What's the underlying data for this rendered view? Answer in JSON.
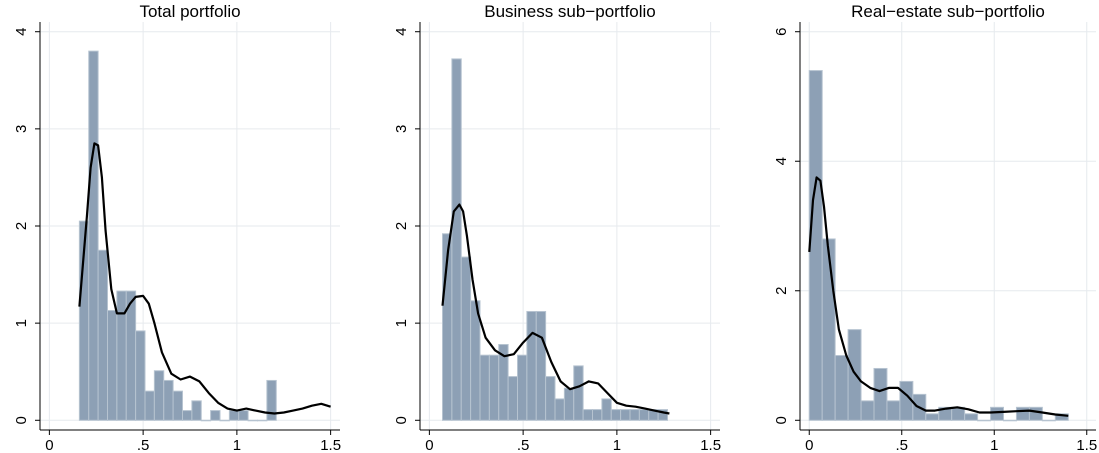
{
  "chart_data": [
    {
      "type": "bar",
      "title": "Total portfolio",
      "xlabel": "",
      "ylabel": "",
      "xlim": [
        -0.05,
        1.55
      ],
      "ylim": [
        -0.1,
        4.1
      ],
      "x_ticks": [
        0,
        0.5,
        1,
        1.5
      ],
      "x_tick_labels": [
        "0",
        ".5",
        "1",
        "1.5"
      ],
      "y_ticks": [
        0,
        1,
        2,
        3,
        4
      ],
      "y_tick_labels": [
        "0",
        "1",
        "2",
        "3",
        "4"
      ],
      "grid": true,
      "legend": "none",
      "bin_width": 0.05,
      "bins": [
        {
          "x0": 0.16,
          "height": 2.05
        },
        {
          "x0": 0.21,
          "height": 3.8
        },
        {
          "x0": 0.26,
          "height": 1.75
        },
        {
          "x0": 0.31,
          "height": 1.13
        },
        {
          "x0": 0.36,
          "height": 1.33
        },
        {
          "x0": 0.41,
          "height": 1.33
        },
        {
          "x0": 0.46,
          "height": 0.92
        },
        {
          "x0": 0.51,
          "height": 0.3
        },
        {
          "x0": 0.56,
          "height": 0.51
        },
        {
          "x0": 0.61,
          "height": 0.41
        },
        {
          "x0": 0.66,
          "height": 0.3
        },
        {
          "x0": 0.71,
          "height": 0.1
        },
        {
          "x0": 0.76,
          "height": 0.2
        },
        {
          "x0": 0.81,
          "height": 0.0
        },
        {
          "x0": 0.86,
          "height": 0.1
        },
        {
          "x0": 0.91,
          "height": 0.0
        },
        {
          "x0": 0.96,
          "height": 0.1
        },
        {
          "x0": 1.01,
          "height": 0.1
        },
        {
          "x0": 1.06,
          "height": 0.0
        },
        {
          "x0": 1.11,
          "height": 0.0
        },
        {
          "x0": 1.16,
          "height": 0.41
        }
      ],
      "density_line": {
        "x": [
          0.16,
          0.2,
          0.22,
          0.24,
          0.26,
          0.28,
          0.3,
          0.33,
          0.36,
          0.4,
          0.43,
          0.46,
          0.5,
          0.53,
          0.56,
          0.6,
          0.65,
          0.7,
          0.75,
          0.8,
          0.85,
          0.9,
          0.95,
          1.0,
          1.05,
          1.1,
          1.15,
          1.2,
          1.25,
          1.3,
          1.35,
          1.4,
          1.45,
          1.5
        ],
        "y": [
          1.17,
          2.1,
          2.6,
          2.85,
          2.83,
          2.5,
          1.95,
          1.35,
          1.1,
          1.1,
          1.2,
          1.27,
          1.28,
          1.2,
          1.0,
          0.7,
          0.48,
          0.42,
          0.45,
          0.4,
          0.28,
          0.18,
          0.12,
          0.1,
          0.12,
          0.1,
          0.08,
          0.07,
          0.08,
          0.1,
          0.12,
          0.15,
          0.17,
          0.14
        ]
      }
    },
    {
      "type": "bar",
      "title": "Business sub−portfolio",
      "xlabel": "",
      "ylabel": "",
      "xlim": [
        -0.05,
        1.55
      ],
      "ylim": [
        -0.1,
        4.1
      ],
      "x_ticks": [
        0,
        0.5,
        1,
        1.5
      ],
      "x_tick_labels": [
        "0",
        ".5",
        "1",
        "1.5"
      ],
      "y_ticks": [
        0,
        1,
        2,
        3,
        4
      ],
      "y_tick_labels": [
        "0",
        "1",
        "2",
        "3",
        "4"
      ],
      "grid": true,
      "legend": "none",
      "bin_width": 0.05,
      "bins": [
        {
          "x0": 0.07,
          "height": 1.92
        },
        {
          "x0": 0.12,
          "height": 3.72
        },
        {
          "x0": 0.17,
          "height": 1.68
        },
        {
          "x0": 0.22,
          "height": 1.23
        },
        {
          "x0": 0.27,
          "height": 0.67
        },
        {
          "x0": 0.32,
          "height": 0.67
        },
        {
          "x0": 0.37,
          "height": 0.78
        },
        {
          "x0": 0.42,
          "height": 0.45
        },
        {
          "x0": 0.47,
          "height": 0.67
        },
        {
          "x0": 0.52,
          "height": 1.12
        },
        {
          "x0": 0.57,
          "height": 1.12
        },
        {
          "x0": 0.62,
          "height": 0.45
        },
        {
          "x0": 0.67,
          "height": 0.22
        },
        {
          "x0": 0.72,
          "height": 0.33
        },
        {
          "x0": 0.77,
          "height": 0.56
        },
        {
          "x0": 0.82,
          "height": 0.11
        },
        {
          "x0": 0.87,
          "height": 0.11
        },
        {
          "x0": 0.92,
          "height": 0.22
        },
        {
          "x0": 0.97,
          "height": 0.11
        },
        {
          "x0": 1.02,
          "height": 0.11
        },
        {
          "x0": 1.07,
          "height": 0.11
        },
        {
          "x0": 1.12,
          "height": 0.11
        },
        {
          "x0": 1.17,
          "height": 0.11
        },
        {
          "x0": 1.22,
          "height": 0.11
        }
      ],
      "density_line": {
        "x": [
          0.07,
          0.1,
          0.13,
          0.16,
          0.18,
          0.2,
          0.23,
          0.26,
          0.3,
          0.35,
          0.4,
          0.45,
          0.5,
          0.55,
          0.6,
          0.65,
          0.7,
          0.75,
          0.8,
          0.85,
          0.9,
          0.95,
          1.0,
          1.05,
          1.1,
          1.15,
          1.2,
          1.25,
          1.28
        ],
        "y": [
          1.18,
          1.75,
          2.15,
          2.22,
          2.15,
          1.9,
          1.45,
          1.1,
          0.85,
          0.72,
          0.66,
          0.68,
          0.8,
          0.9,
          0.85,
          0.6,
          0.4,
          0.32,
          0.35,
          0.4,
          0.38,
          0.28,
          0.18,
          0.15,
          0.14,
          0.12,
          0.1,
          0.08,
          0.07
        ]
      }
    },
    {
      "type": "bar",
      "title": "Real−estate sub−portfolio",
      "xlabel": "",
      "ylabel": "",
      "xlim": [
        -0.05,
        1.55
      ],
      "ylim": [
        -0.15,
        6.15
      ],
      "x_ticks": [
        0,
        0.5,
        1,
        1.5
      ],
      "x_tick_labels": [
        "0",
        ".5",
        "1",
        "1.5"
      ],
      "y_ticks": [
        0,
        2,
        4,
        6
      ],
      "y_tick_labels": [
        "0",
        "2",
        "4",
        "6"
      ],
      "grid": true,
      "legend": "none",
      "bin_width": 0.07,
      "bins": [
        {
          "x0": 0.0,
          "height": 5.4
        },
        {
          "x0": 0.07,
          "height": 2.8
        },
        {
          "x0": 0.14,
          "height": 1.0
        },
        {
          "x0": 0.21,
          "height": 1.4
        },
        {
          "x0": 0.28,
          "height": 0.3
        },
        {
          "x0": 0.35,
          "height": 0.8
        },
        {
          "x0": 0.42,
          "height": 0.3
        },
        {
          "x0": 0.49,
          "height": 0.6
        },
        {
          "x0": 0.56,
          "height": 0.4
        },
        {
          "x0": 0.63,
          "height": 0.1
        },
        {
          "x0": 0.7,
          "height": 0.2
        },
        {
          "x0": 0.77,
          "height": 0.2
        },
        {
          "x0": 0.84,
          "height": 0.1
        },
        {
          "x0": 0.91,
          "height": 0.0
        },
        {
          "x0": 0.98,
          "height": 0.2
        },
        {
          "x0": 1.05,
          "height": 0.0
        },
        {
          "x0": 1.12,
          "height": 0.2
        },
        {
          "x0": 1.19,
          "height": 0.2
        },
        {
          "x0": 1.26,
          "height": 0.0
        },
        {
          "x0": 1.33,
          "height": 0.1
        }
      ],
      "density_line": {
        "x": [
          0.0,
          0.02,
          0.04,
          0.06,
          0.08,
          0.1,
          0.13,
          0.16,
          0.2,
          0.24,
          0.28,
          0.33,
          0.38,
          0.43,
          0.48,
          0.53,
          0.58,
          0.63,
          0.68,
          0.74,
          0.8,
          0.86,
          0.92,
          0.98,
          1.05,
          1.12,
          1.19,
          1.26,
          1.33,
          1.4
        ],
        "y": [
          2.6,
          3.4,
          3.75,
          3.7,
          3.3,
          2.7,
          2.0,
          1.4,
          1.0,
          0.75,
          0.6,
          0.5,
          0.45,
          0.5,
          0.5,
          0.38,
          0.22,
          0.15,
          0.15,
          0.18,
          0.2,
          0.17,
          0.12,
          0.12,
          0.13,
          0.14,
          0.15,
          0.12,
          0.09,
          0.07
        ]
      }
    }
  ]
}
